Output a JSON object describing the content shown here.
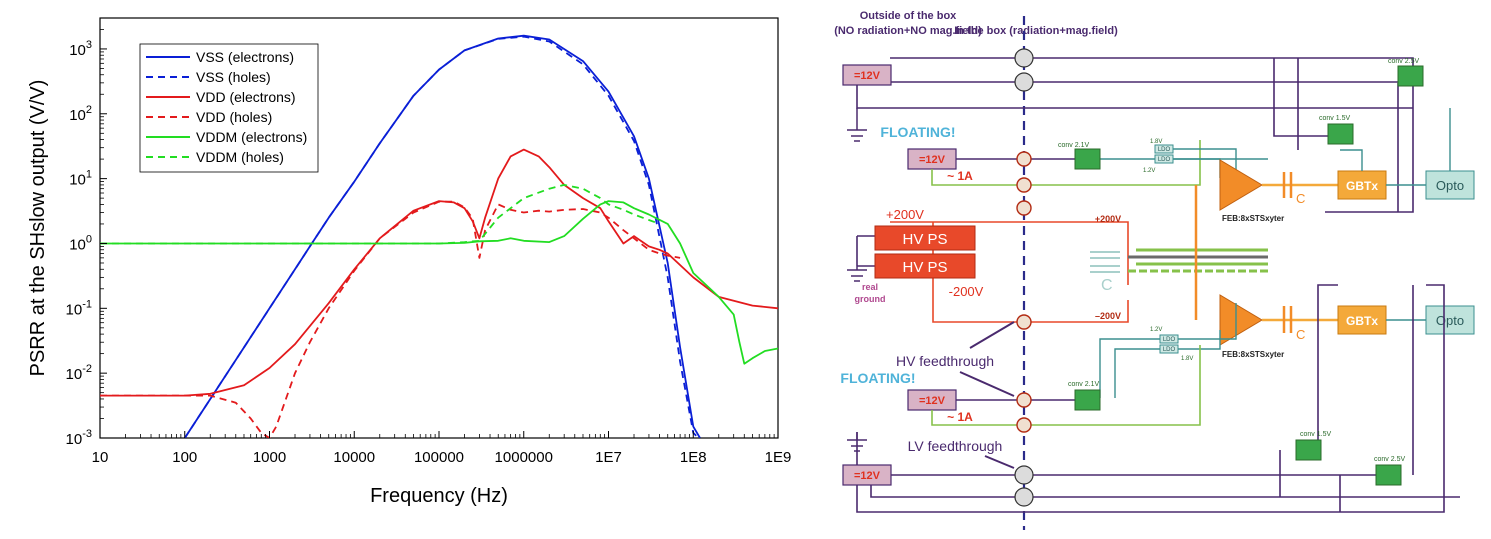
{
  "chart_data": {
    "type": "line",
    "xlabel": "Frequency (Hz)",
    "ylabel": "PSRR at the SHslow output (V/V)",
    "xscale": "log",
    "yscale": "log",
    "xlim": [
      10,
      1000000000
    ],
    "ylim": [
      0.001,
      3000
    ],
    "xticks": [
      {
        "v": 10,
        "label": "10"
      },
      {
        "v": 100,
        "label": "100"
      },
      {
        "v": 1000,
        "label": "1000"
      },
      {
        "v": 10000,
        "label": "10000"
      },
      {
        "v": 100000,
        "label": "100000"
      },
      {
        "v": 1000000,
        "label": "1000000"
      },
      {
        "v": 10000000,
        "label": "1E7"
      },
      {
        "v": 100000000,
        "label": "1E8"
      },
      {
        "v": 1000000000,
        "label": "1E9"
      }
    ],
    "yticks": [
      {
        "v": 0.001,
        "base": "10",
        "exp": "-3"
      },
      {
        "v": 0.01,
        "base": "10",
        "exp": "-2"
      },
      {
        "v": 0.1,
        "base": "10",
        "exp": "-1"
      },
      {
        "v": 1,
        "base": "10",
        "exp": "0"
      },
      {
        "v": 10,
        "base": "10",
        "exp": "1"
      },
      {
        "v": 100,
        "base": "10",
        "exp": "2"
      },
      {
        "v": 1000,
        "base": "10",
        "exp": "3"
      }
    ],
    "legend_position": "top-left",
    "grid": false,
    "series": [
      {
        "name": "VSS (electrons)",
        "color": "#0a1fd6",
        "dash": "solid",
        "points": [
          [
            100,
            0.001
          ],
          [
            200,
            0.004
          ],
          [
            500,
            0.025
          ],
          [
            1000,
            0.1
          ],
          [
            2000,
            0.4
          ],
          [
            3000,
            0.9
          ],
          [
            5000,
            2.5
          ],
          [
            10000,
            9
          ],
          [
            20000,
            35
          ],
          [
            50000,
            190
          ],
          [
            100000,
            480
          ],
          [
            200000,
            950
          ],
          [
            500000,
            1450
          ],
          [
            1000000,
            1600
          ],
          [
            2000000,
            1400
          ],
          [
            5000000,
            650
          ],
          [
            10000000,
            220
          ],
          [
            20000000,
            45
          ],
          [
            30000000,
            10
          ],
          [
            50000000,
            0.5
          ],
          [
            70000000,
            0.025
          ],
          [
            100000000,
            0.0015
          ],
          [
            120000000,
            0.001
          ]
        ]
      },
      {
        "name": "VSS (holes)",
        "color": "#0a1fd6",
        "dash": "dashed",
        "points": [
          [
            100,
            0.001
          ],
          [
            200,
            0.004
          ],
          [
            500,
            0.025
          ],
          [
            1000,
            0.1
          ],
          [
            2000,
            0.4
          ],
          [
            3000,
            0.9
          ],
          [
            5000,
            2.5
          ],
          [
            10000,
            9
          ],
          [
            20000,
            35
          ],
          [
            50000,
            190
          ],
          [
            100000,
            480
          ],
          [
            200000,
            950
          ],
          [
            500000,
            1430
          ],
          [
            1000000,
            1550
          ],
          [
            2000000,
            1300
          ],
          [
            5000000,
            580
          ],
          [
            10000000,
            190
          ],
          [
            20000000,
            38
          ],
          [
            30000000,
            8
          ],
          [
            50000000,
            0.3
          ],
          [
            70000000,
            0.015
          ],
          [
            100000000,
            0.0012
          ],
          [
            115000000,
            0.001
          ]
        ]
      },
      {
        "name": "VDD (electrons)",
        "color": "#e31a1c",
        "dash": "solid",
        "points": [
          [
            10,
            0.0045
          ],
          [
            100,
            0.0045
          ],
          [
            200,
            0.0048
          ],
          [
            500,
            0.0065
          ],
          [
            1000,
            0.012
          ],
          [
            2000,
            0.028
          ],
          [
            5000,
            0.12
          ],
          [
            10000,
            0.4
          ],
          [
            20000,
            1.2
          ],
          [
            50000,
            3.2
          ],
          [
            100000,
            4.5
          ],
          [
            150000,
            4.3
          ],
          [
            200000,
            3.5
          ],
          [
            250000,
            2.2
          ],
          [
            300000,
            1.2
          ],
          [
            350000,
            2.5
          ],
          [
            500000,
            10
          ],
          [
            700000,
            22
          ],
          [
            1000000,
            28
          ],
          [
            1500000,
            22
          ],
          [
            2000000,
            15
          ],
          [
            3000000,
            8
          ],
          [
            5000000,
            5
          ],
          [
            8000000,
            3.5
          ],
          [
            10000000,
            2.2
          ],
          [
            15000000,
            1
          ],
          [
            20000000,
            1.3
          ],
          [
            30000000,
            0.9
          ],
          [
            40000000,
            0.8
          ],
          [
            50000000,
            0.7
          ],
          [
            100000000,
            0.3
          ],
          [
            200000000,
            0.15
          ],
          [
            500000000,
            0.11
          ],
          [
            1000000000,
            0.1
          ]
        ]
      },
      {
        "name": "VDD (holes)",
        "color": "#e31a1c",
        "dash": "dashed",
        "points": [
          [
            10,
            0.0045
          ],
          [
            100,
            0.0045
          ],
          [
            200,
            0.0045
          ],
          [
            400,
            0.0035
          ],
          [
            600,
            0.002
          ],
          [
            800,
            0.0012
          ],
          [
            1000,
            0.001
          ],
          [
            1200,
            0.0015
          ],
          [
            2000,
            0.01
          ],
          [
            3000,
            0.03
          ],
          [
            5000,
            0.1
          ],
          [
            10000,
            0.38
          ],
          [
            20000,
            1.2
          ],
          [
            50000,
            3
          ],
          [
            100000,
            4.4
          ],
          [
            150000,
            4.4
          ],
          [
            200000,
            3.6
          ],
          [
            250000,
            2.4
          ],
          [
            300000,
            0.6
          ],
          [
            350000,
            1.6
          ],
          [
            500000,
            4
          ],
          [
            700000,
            3.3
          ],
          [
            1000000,
            3
          ],
          [
            1500000,
            3.2
          ],
          [
            2000000,
            3.1
          ],
          [
            3000000,
            3.3
          ],
          [
            5000000,
            3.4
          ],
          [
            8000000,
            3
          ],
          [
            10000000,
            2.5
          ],
          [
            15000000,
            1.6
          ],
          [
            20000000,
            1.2
          ],
          [
            30000000,
            0.8
          ],
          [
            40000000,
            0.7
          ],
          [
            50000000,
            0.65
          ],
          [
            70000000,
            0.6
          ]
        ]
      },
      {
        "name": "VDDM (electrons)",
        "color": "#22dd22",
        "dash": "solid",
        "points": [
          [
            10,
            1
          ],
          [
            100,
            1
          ],
          [
            1000,
            1
          ],
          [
            10000,
            1
          ],
          [
            100000,
            1
          ],
          [
            200000,
            1.02
          ],
          [
            300000,
            1.08
          ],
          [
            500000,
            1.1
          ],
          [
            700000,
            1.2
          ],
          [
            1000000,
            1.1
          ],
          [
            2000000,
            1.05
          ],
          [
            3000000,
            1.3
          ],
          [
            5000000,
            2.4
          ],
          [
            8000000,
            4
          ],
          [
            10000000,
            4.5
          ],
          [
            15000000,
            4.3
          ],
          [
            20000000,
            3.5
          ],
          [
            30000000,
            2.8
          ],
          [
            50000000,
            2
          ],
          [
            70000000,
            1
          ],
          [
            100000000,
            0.35
          ],
          [
            200000000,
            0.15
          ],
          [
            300000000,
            0.08
          ],
          [
            350000000,
            0.03
          ],
          [
            400000000,
            0.014
          ],
          [
            500000000,
            0.017
          ],
          [
            700000000,
            0.022
          ],
          [
            1000000000,
            0.024
          ]
        ]
      },
      {
        "name": "VDDM (holes)",
        "color": "#22dd22",
        "dash": "dashed",
        "points": [
          [
            10,
            1
          ],
          [
            100,
            1
          ],
          [
            1000,
            1
          ],
          [
            10000,
            1
          ],
          [
            100000,
            1
          ],
          [
            200000,
            1.05
          ],
          [
            300000,
            1.1
          ],
          [
            500000,
            2.5
          ],
          [
            1000000,
            5
          ],
          [
            2000000,
            7
          ],
          [
            3000000,
            8
          ],
          [
            5000000,
            7
          ],
          [
            8000000,
            5
          ],
          [
            10000000,
            4
          ],
          [
            15000000,
            3.3
          ],
          [
            20000000,
            2.8
          ],
          [
            30000000,
            2.3
          ],
          [
            40000000,
            2
          ]
        ]
      }
    ]
  },
  "diagram": {
    "header_outside": "Outside of the box",
    "header_outside_sub": "(NO radiation+NO mag.field)",
    "header_inside": "In the box (radiation+mag.field)",
    "floating_label": "FLOATING!",
    "v12_label": "=12V",
    "current_label": "~ 1A",
    "hv_ps_label": "HV PS",
    "plus200_label": "+200V",
    "minus200_label": "-200V",
    "plus200_inner": "+200V",
    "minus200_inner": "–200V",
    "real_ground": "real\nground",
    "conv_21": "conv 2.1V",
    "conv_15": "conv 1.5V",
    "conv_25": "conv 2.5V",
    "ldo_label": "LDO",
    "v18_label": "1.8V",
    "v12s_label": "1.2V",
    "feb_label": "FEB:8xSTSxyter",
    "gbtx_label": "GBTx",
    "opto_label": "Opto",
    "cap_label": "C",
    "hv_feedthrough": "HV feedthrough",
    "lv_feedthrough": "LV feedthrough",
    "colors": {
      "purple": "#4a2a6e",
      "green_wire": "#86c14a",
      "teal": "#3b8f8f",
      "orange": "#f28c28",
      "red": "#e0311f",
      "hv_red": "#e8492a",
      "box_green": "#3aa64a",
      "gbtx": "#f4a93a",
      "opto": "#bfe3dc",
      "pink_box": "#d9b3c6",
      "floating_blue": "#4fb3d9"
    }
  }
}
